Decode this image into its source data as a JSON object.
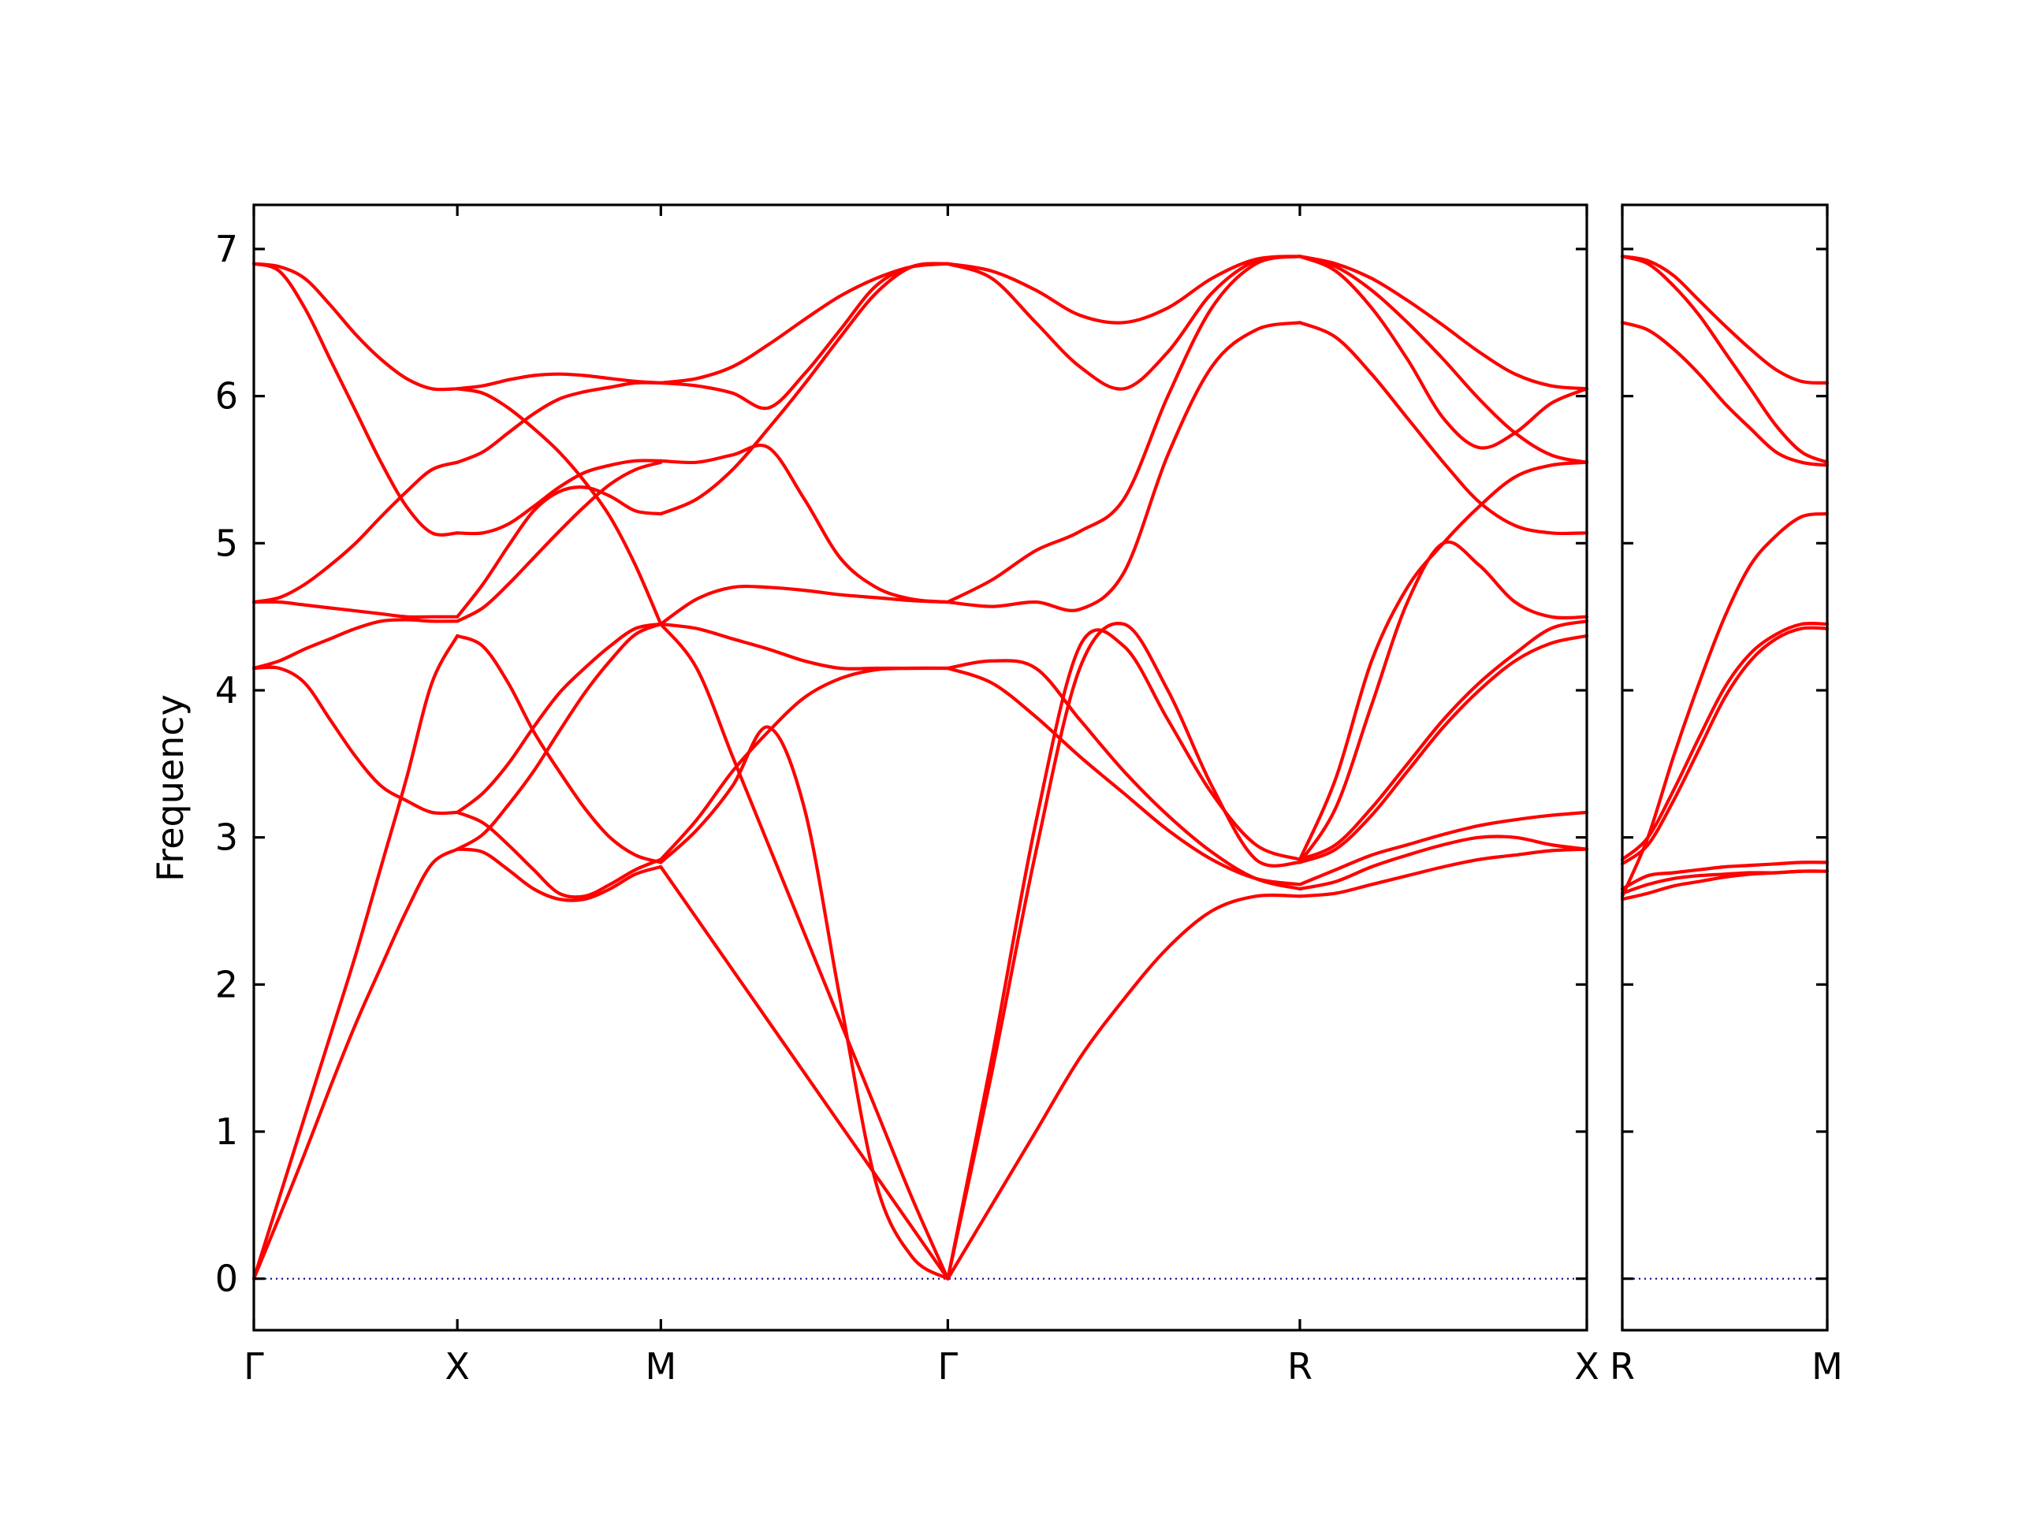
{
  "chart_data": {
    "type": "line",
    "title": "",
    "ylabel": "Frequency",
    "xlabel": "",
    "ylim": [
      -0.35,
      7.3
    ],
    "y_ticks": [
      0,
      1,
      2,
      3,
      4,
      5,
      6,
      7
    ],
    "grid": false,
    "legend": "none",
    "band_color": "#ff0000",
    "zero_line_color": "#00008b",
    "panels": [
      {
        "path_labels": [
          "Γ",
          "X",
          "M",
          "Γ",
          "R",
          "X"
        ],
        "segments": [
          {
            "from": "Γ",
            "to": "X",
            "t": [
              0,
              0.125,
              0.25,
              0.375,
              0.5,
              0.625,
              0.75,
              0.875,
              1
            ],
            "bands": [
              [
                0,
                0.42,
                0.85,
                1.3,
                1.73,
                2.12,
                2.5,
                2.82,
                2.92
              ],
              [
                0,
                0.55,
                1.1,
                1.65,
                2.2,
                2.8,
                3.4,
                4.05,
                4.37
              ],
              [
                4.15,
                4.15,
                4.05,
                3.8,
                3.55,
                3.35,
                3.25,
                3.17,
                3.17
              ],
              [
                4.15,
                4.2,
                4.28,
                4.35,
                4.42,
                4.47,
                4.48,
                4.47,
                4.47
              ],
              [
                4.6,
                4.6,
                4.58,
                4.56,
                4.54,
                4.52,
                4.5,
                4.5,
                4.5
              ],
              [
                4.6,
                4.63,
                4.72,
                4.85,
                5.0,
                5.18,
                5.35,
                5.5,
                5.55
              ],
              [
                6.9,
                6.85,
                6.6,
                6.25,
                5.9,
                5.55,
                5.25,
                5.07,
                5.07
              ],
              [
                6.9,
                6.88,
                6.8,
                6.62,
                6.42,
                6.25,
                6.12,
                6.05,
                6.05
              ]
            ]
          },
          {
            "from": "X",
            "to": "M",
            "t": [
              0,
              0.125,
              0.25,
              0.375,
              0.5,
              0.625,
              0.75,
              0.875,
              1
            ],
            "bands": [
              [
                2.92,
                2.9,
                2.78,
                2.65,
                2.58,
                2.58,
                2.65,
                2.75,
                2.8
              ],
              [
                3.17,
                3.1,
                2.95,
                2.78,
                2.62,
                2.6,
                2.68,
                2.78,
                2.85
              ],
              [
                4.37,
                4.3,
                4.05,
                3.72,
                3.45,
                3.2,
                3.0,
                2.88,
                2.83
              ],
              [
                2.92,
                3.02,
                3.22,
                3.45,
                3.72,
                3.98,
                4.2,
                4.38,
                4.45
              ],
              [
                3.17,
                3.3,
                3.5,
                3.75,
                3.98,
                4.15,
                4.3,
                4.42,
                4.45
              ],
              [
                4.47,
                4.56,
                4.72,
                4.9,
                5.08,
                5.25,
                5.4,
                5.5,
                5.55
              ],
              [
                5.07,
                5.07,
                5.13,
                5.25,
                5.38,
                5.48,
                5.53,
                5.56,
                5.56
              ],
              [
                4.5,
                4.72,
                4.98,
                5.22,
                5.35,
                5.38,
                5.32,
                5.22,
                5.2
              ],
              [
                5.55,
                5.62,
                5.75,
                5.88,
                5.98,
                6.03,
                6.06,
                6.09,
                6.09
              ],
              [
                6.05,
                6.07,
                6.11,
                6.14,
                6.15,
                6.14,
                6.12,
                6.1,
                6.09
              ],
              [
                6.05,
                6.02,
                5.92,
                5.78,
                5.62,
                5.42,
                5.18,
                4.85,
                4.45
              ]
            ]
          },
          {
            "from": "M",
            "to": "Γ",
            "t": [
              0,
              0.125,
              0.25,
              0.375,
              0.5,
              0.625,
              0.75,
              0.875,
              1
            ],
            "bands": [
              [
                2.8,
                2.45,
                2.1,
                1.75,
                1.4,
                1.05,
                0.7,
                0.35,
                0
              ],
              [
                4.45,
                4.15,
                3.55,
                2.95,
                2.35,
                1.75,
                1.15,
                0.55,
                0
              ],
              [
                2.83,
                3.05,
                3.35,
                3.75,
                3.2,
                1.9,
                0.65,
                0.15,
                0
              ],
              [
                2.85,
                3.12,
                3.45,
                3.72,
                3.95,
                4.08,
                4.14,
                4.15,
                4.15
              ],
              [
                4.45,
                4.42,
                4.35,
                4.28,
                4.2,
                4.15,
                4.15,
                4.15,
                4.15
              ],
              [
                4.45,
                4.62,
                4.7,
                4.7,
                4.68,
                4.65,
                4.63,
                4.61,
                4.6
              ],
              [
                5.56,
                5.55,
                5.6,
                5.65,
                5.3,
                4.9,
                4.7,
                4.62,
                4.6
              ],
              [
                5.2,
                5.3,
                5.5,
                5.78,
                6.08,
                6.4,
                6.7,
                6.88,
                6.9
              ],
              [
                6.09,
                6.07,
                6.02,
                5.92,
                6.15,
                6.45,
                6.75,
                6.88,
                6.9
              ],
              [
                6.09,
                6.12,
                6.2,
                6.35,
                6.52,
                6.68,
                6.8,
                6.88,
                6.9
              ]
            ]
          },
          {
            "from": "Γ",
            "to": "R",
            "t": [
              0,
              0.125,
              0.25,
              0.375,
              0.5,
              0.625,
              0.75,
              0.875,
              1
            ],
            "bands": [
              [
                0,
                0.5,
                1.0,
                1.5,
                1.9,
                2.25,
                2.5,
                2.6,
                2.6
              ],
              [
                0,
                1.5,
                3.1,
                4.3,
                4.3,
                3.8,
                3.3,
                2.95,
                2.85
              ],
              [
                0,
                1.4,
                2.9,
                4.15,
                4.45,
                4.0,
                3.35,
                2.85,
                2.83
              ],
              [
                4.15,
                4.05,
                3.82,
                3.55,
                3.3,
                3.05,
                2.85,
                2.72,
                2.68
              ],
              [
                4.15,
                4.2,
                4.15,
                3.8,
                3.45,
                3.15,
                2.9,
                2.72,
                2.65
              ],
              [
                4.6,
                4.57,
                4.6,
                4.55,
                4.8,
                5.6,
                6.2,
                6.45,
                6.5
              ],
              [
                4.6,
                4.75,
                4.95,
                5.08,
                5.3,
                6.0,
                6.6,
                6.9,
                6.95
              ],
              [
                6.9,
                6.8,
                6.5,
                6.2,
                6.05,
                6.3,
                6.7,
                6.92,
                6.95
              ],
              [
                6.9,
                6.85,
                6.72,
                6.55,
                6.5,
                6.6,
                6.8,
                6.93,
                6.95
              ]
            ]
          },
          {
            "from": "R",
            "to": "X",
            "t": [
              0,
              0.125,
              0.25,
              0.375,
              0.5,
              0.625,
              0.75,
              0.875,
              1
            ],
            "bands": [
              [
                2.6,
                2.62,
                2.68,
                2.74,
                2.8,
                2.85,
                2.88,
                2.91,
                2.92
              ],
              [
                2.65,
                2.7,
                2.8,
                2.88,
                2.95,
                3.0,
                3.0,
                2.95,
                2.92
              ],
              [
                2.68,
                2.78,
                2.88,
                2.95,
                3.02,
                3.08,
                3.12,
                3.15,
                3.17
              ],
              [
                2.83,
                2.92,
                3.15,
                3.45,
                3.75,
                4.0,
                4.2,
                4.32,
                4.37
              ],
              [
                2.85,
                2.95,
                3.2,
                3.5,
                3.8,
                4.05,
                4.25,
                4.42,
                4.47
              ],
              [
                2.83,
                3.2,
                3.9,
                4.6,
                5.0,
                4.85,
                4.6,
                4.5,
                4.5
              ],
              [
                2.85,
                3.4,
                4.2,
                4.7,
                5.0,
                5.25,
                5.45,
                5.53,
                5.55
              ],
              [
                6.5,
                6.4,
                6.15,
                5.85,
                5.55,
                5.28,
                5.12,
                5.07,
                5.07
              ],
              [
                6.95,
                6.85,
                6.6,
                6.25,
                5.85,
                5.65,
                5.75,
                5.95,
                6.05
              ],
              [
                6.95,
                6.88,
                6.72,
                6.5,
                6.25,
                5.98,
                5.75,
                5.6,
                5.55
              ],
              [
                6.95,
                6.9,
                6.8,
                6.65,
                6.48,
                6.3,
                6.15,
                6.07,
                6.05
              ]
            ]
          }
        ]
      },
      {
        "path_labels": [
          "R",
          "M"
        ],
        "segments": [
          {
            "from": "R",
            "to": "M",
            "t": [
              0,
              0.125,
              0.25,
              0.375,
              0.5,
              0.625,
              0.75,
              0.875,
              1
            ],
            "bands": [
              [
                2.58,
                2.62,
                2.67,
                2.7,
                2.73,
                2.75,
                2.76,
                2.77,
                2.77
              ],
              [
                2.62,
                2.68,
                2.72,
                2.74,
                2.75,
                2.76,
                2.76,
                2.77,
                2.77
              ],
              [
                2.65,
                2.74,
                2.76,
                2.78,
                2.8,
                2.81,
                2.82,
                2.83,
                2.83
              ],
              [
                2.82,
                2.95,
                3.25,
                3.6,
                3.95,
                4.2,
                4.35,
                4.42,
                4.42
              ],
              [
                2.85,
                3.0,
                3.32,
                3.68,
                4.02,
                4.25,
                4.38,
                4.45,
                4.45
              ],
              [
                2.6,
                3.0,
                3.55,
                4.05,
                4.5,
                4.85,
                5.05,
                5.18,
                5.2
              ],
              [
                6.5,
                6.45,
                6.32,
                6.15,
                5.95,
                5.78,
                5.62,
                5.55,
                5.53
              ],
              [
                6.95,
                6.9,
                6.75,
                6.55,
                6.3,
                6.05,
                5.8,
                5.62,
                5.55
              ],
              [
                6.95,
                6.92,
                6.82,
                6.65,
                6.48,
                6.32,
                6.18,
                6.1,
                6.09
              ]
            ]
          }
        ]
      }
    ]
  }
}
